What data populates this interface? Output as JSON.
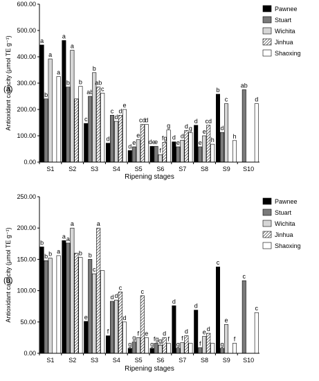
{
  "chart_data": [
    {
      "type": "bar",
      "panel_label": "(a)",
      "xlabel": "Ripening stages",
      "ylabel": "Antioxidant capacity (μmol TE g⁻¹)",
      "ylim": [
        0,
        600
      ],
      "yticks": [
        "0.00",
        "100.00",
        "200.00",
        "300.00",
        "400.00",
        "500.00",
        "600.00"
      ],
      "categories": [
        "S1",
        "S2",
        "S3",
        "S4",
        "S5",
        "S6",
        "S7",
        "S8",
        "S9",
        "S10"
      ],
      "legend_position": "top-right",
      "series": [
        {
          "name": "Pawnee",
          "pattern": "black",
          "values": [
            445,
            462,
            147,
            72,
            44,
            60,
            77,
            140,
            258,
            null
          ],
          "letters": [
            "a",
            "a",
            "c",
            "d",
            "d",
            "de",
            "d",
            "d",
            "b",
            ""
          ]
        },
        {
          "name": "Stuart",
          "pattern": "gray",
          "values": [
            240,
            285,
            250,
            178,
            58,
            60,
            58,
            58,
            113,
            275
          ],
          "letters": [
            "b",
            "b",
            "ab",
            "c",
            "e",
            "e",
            "e",
            "e",
            "d",
            "ab"
          ]
        },
        {
          "name": "Wichita",
          "pattern": "lightgray",
          "values": [
            392,
            425,
            340,
            155,
            85,
            28,
            83,
            100,
            222,
            null
          ],
          "letters": [
            "a",
            "a",
            "b",
            "d",
            "e",
            "f",
            "d",
            "e",
            "c",
            ""
          ]
        },
        {
          "name": "Jinhua",
          "pattern": "hatch",
          "values": [
            null,
            240,
            285,
            178,
            143,
            75,
            120,
            140,
            null,
            null
          ],
          "letters": [
            "",
            "",
            "ab",
            "d",
            "cd",
            "fg",
            "d",
            "cd",
            "",
            ""
          ]
        },
        {
          "name": "Shaoxing",
          "pattern": "white",
          "values": [
            325,
            288,
            262,
            200,
            143,
            122,
            112,
            68,
            82,
            222
          ],
          "letters": [
            "a",
            "b",
            "c",
            "e",
            "d",
            "g",
            "g",
            "h",
            "h",
            "d"
          ]
        }
      ]
    },
    {
      "type": "bar",
      "panel_label": "(b)",
      "xlabel": "Ripening stages",
      "ylabel": "Antioxidant capacity (μmol TE g⁻¹)",
      "ylim": [
        0,
        250
      ],
      "yticks": [
        "0.00",
        "50.00",
        "100.00",
        "150.00",
        "200.00",
        "250.00"
      ],
      "categories": [
        "S1",
        "S2",
        "S3",
        "S4",
        "S5",
        "S6",
        "S7",
        "S8",
        "S9",
        "S10"
      ],
      "legend_position": "top-right",
      "series": [
        {
          "name": "Pawnee",
          "pattern": "black",
          "values": [
            170,
            180,
            51,
            28,
            8,
            8,
            76,
            69,
            138,
            null
          ],
          "letters": [
            "b",
            "a",
            "e",
            "f",
            "g",
            "g",
            "d",
            "d",
            "c",
            ""
          ]
        },
        {
          "name": "Stuart",
          "pattern": "gray",
          "values": [
            148,
            176,
            150,
            83,
            18,
            16,
            8,
            9,
            8,
            116
          ],
          "letters": [
            "b",
            "a",
            "b",
            "d",
            "g",
            "fg",
            "g",
            "f",
            "g",
            "c"
          ]
        },
        {
          "name": "Wichita",
          "pattern": "lightgray",
          "values": [
            152,
            200,
            127,
            85,
            25,
            13,
            17,
            27,
            46,
            null
          ],
          "letters": [
            "b",
            "a",
            "c",
            "d",
            "f",
            "g",
            "f",
            "e",
            "e",
            ""
          ]
        },
        {
          "name": "Jinhua",
          "pattern": "hatch",
          "values": [
            null,
            160,
            200,
            98,
            92,
            25,
            28,
            32,
            null,
            null
          ],
          "letters": [
            "",
            "",
            "a",
            "c",
            "c",
            "d",
            "d",
            "d",
            "",
            ""
          ]
        },
        {
          "name": "Shaoxing",
          "pattern": "white",
          "values": [
            156,
            153,
            132,
            50,
            25,
            16,
            16,
            16,
            16,
            65
          ],
          "letters": [
            "a",
            "b",
            "",
            "d",
            "e",
            "f",
            "",
            "",
            "f",
            "c"
          ]
        }
      ]
    }
  ]
}
